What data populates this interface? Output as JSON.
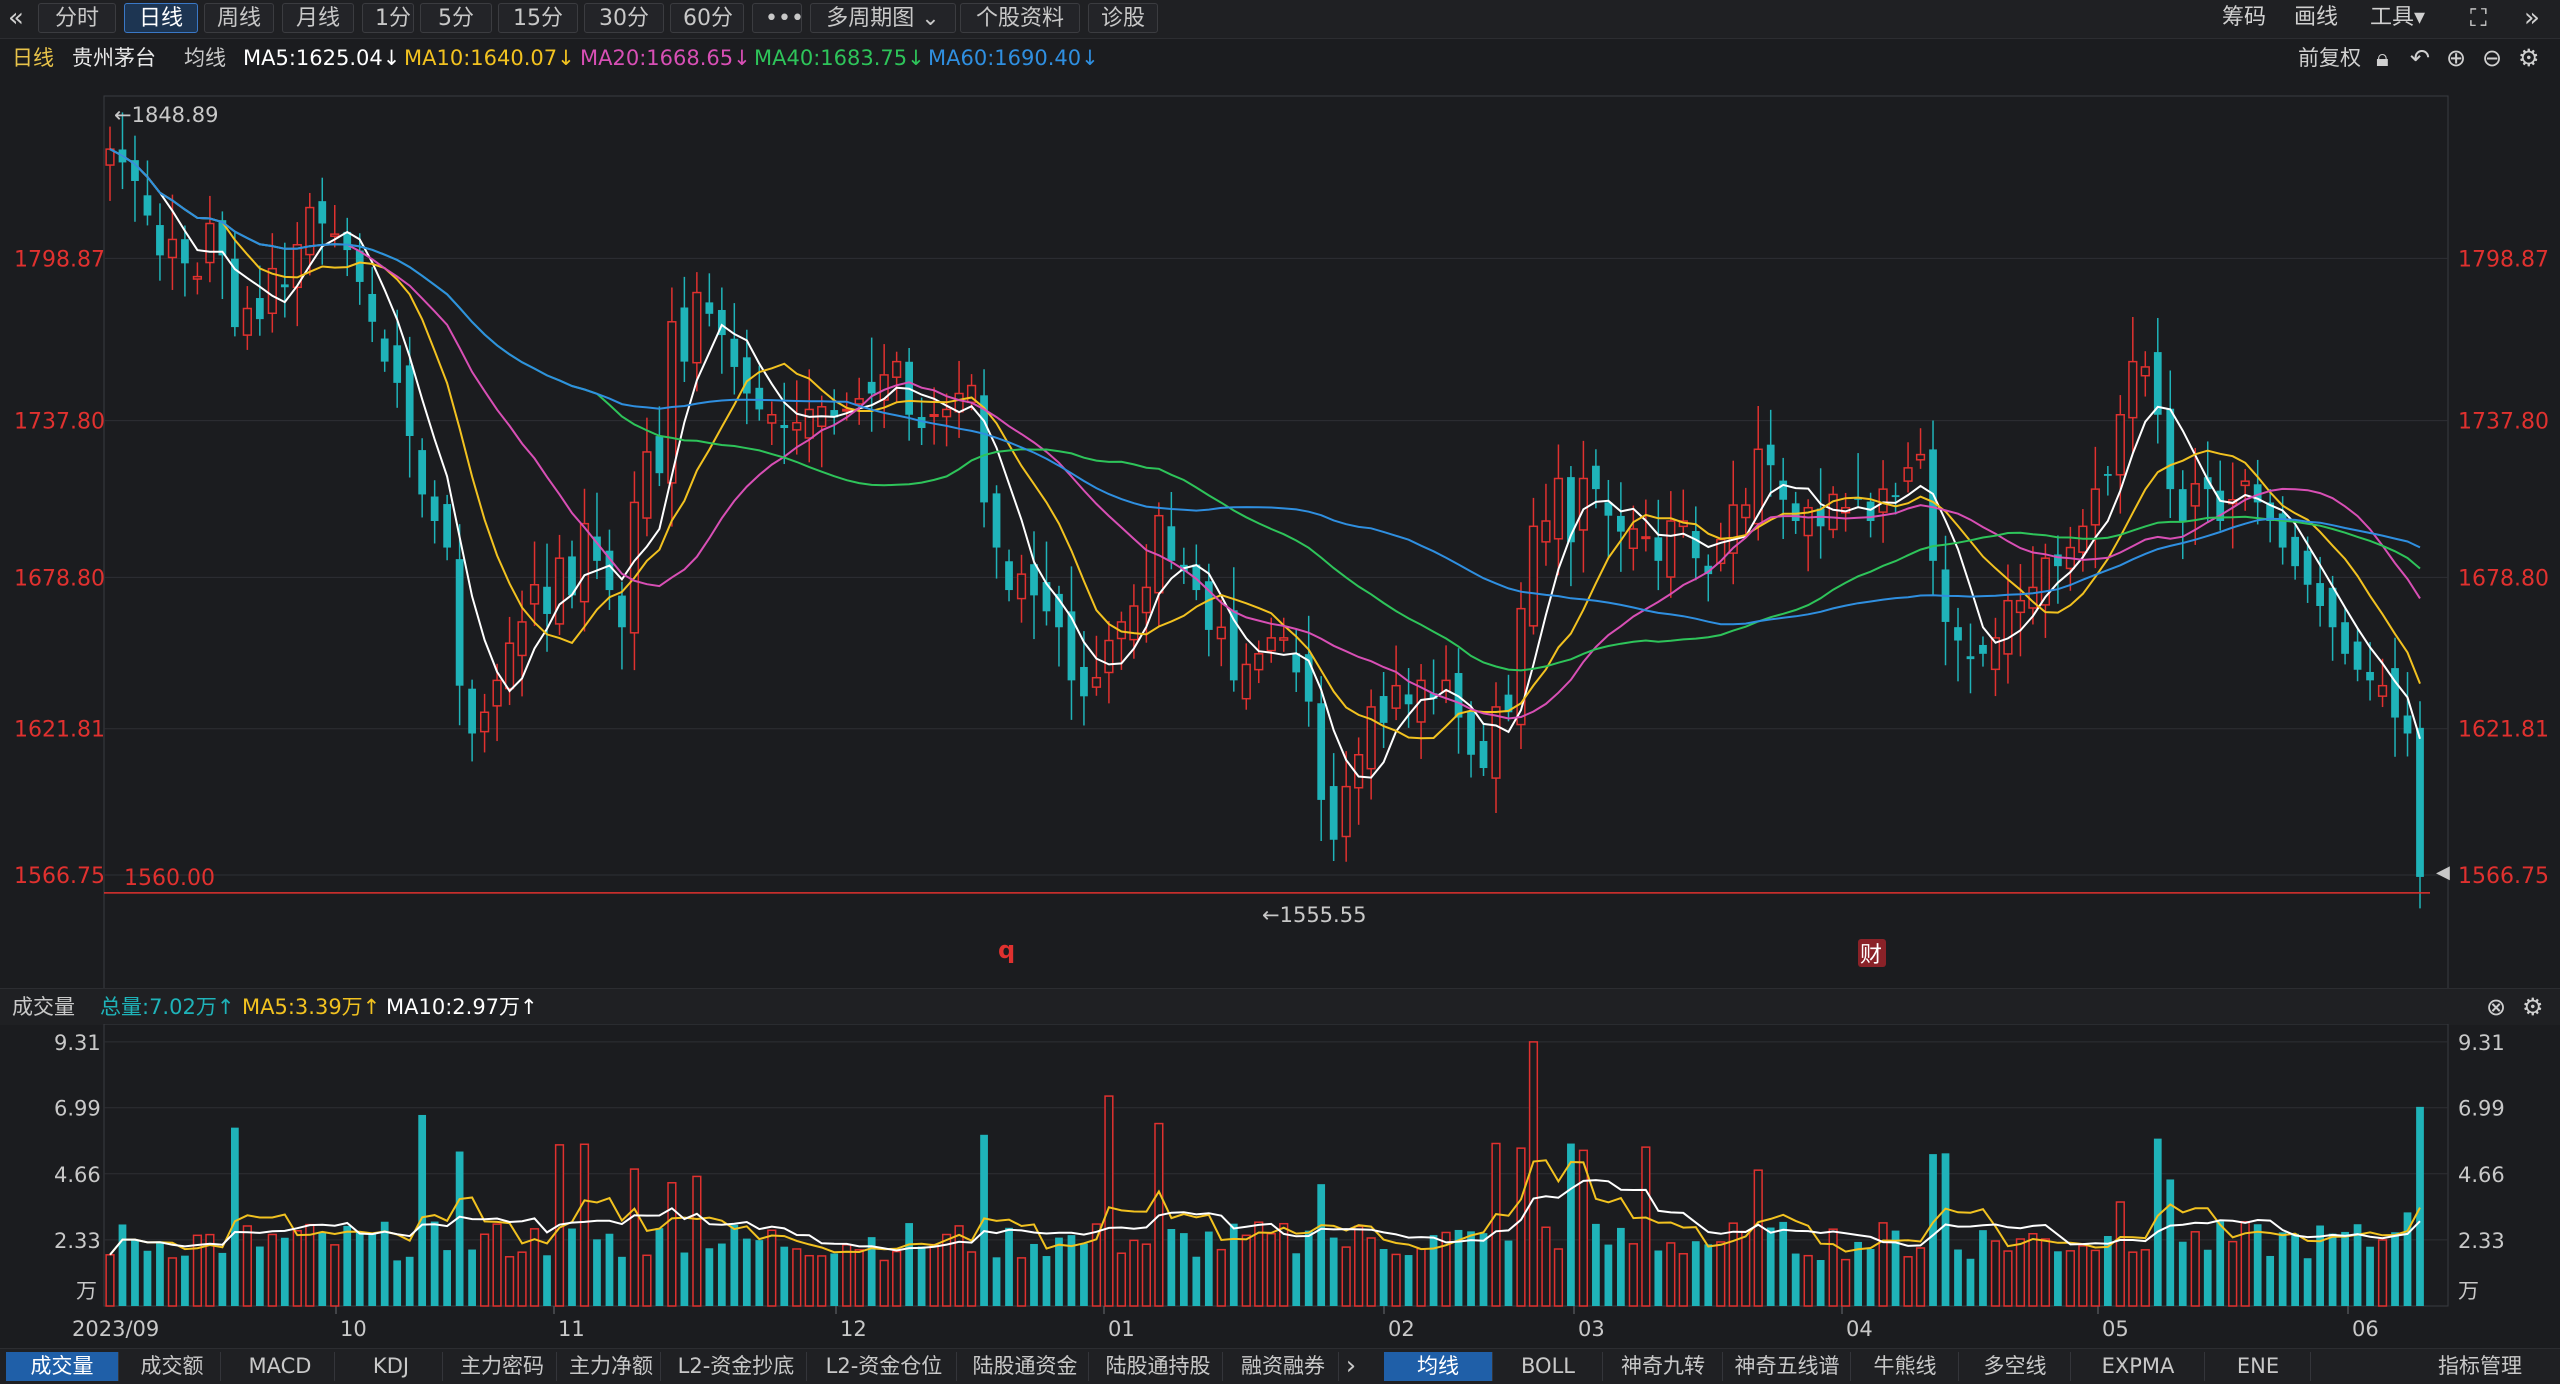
{
  "toolbar": {
    "collapse_icon": "chevrons-left-icon",
    "buttons": [
      "分时",
      "日线",
      "周线",
      "月线",
      "1分",
      "5分",
      "15分",
      "30分",
      "60分",
      "•••",
      "多周期图 ⌄",
      "个股资料",
      "诊股"
    ],
    "active": "日线",
    "right": [
      "筹码",
      "画线",
      "工具▾"
    ],
    "expand_icon": "fullscreen-icon",
    "collapse_right_icon": "chevrons-right-icon"
  },
  "header": {
    "period": "日线",
    "stock": "贵州茅台",
    "ma_title": "均线",
    "ma5": "MA5:1625.04↓",
    "ma10": "MA10:1640.07↓",
    "ma20": "MA20:1668.65↓",
    "ma40": "MA40:1683.75↓",
    "ma60": "MA60:1690.40↓",
    "adjust": "前复权",
    "icons": [
      "lock-icon",
      "undo-icon",
      "zoom-in-icon",
      "zoom-out-icon",
      "gear-icon"
    ]
  },
  "price_axis": {
    "ticks": [
      "1798.87",
      "1737.80",
      "1678.80",
      "1621.81",
      "1566.75"
    ],
    "max_label": "←1848.89",
    "min_label": "←1555.55",
    "line_label": "1560.00",
    "marker_q": "q",
    "marker_cai": "财"
  },
  "volume_header": {
    "title": "成交量",
    "total": "总量:7.02万↑",
    "ma5": "MA5:3.39万↑",
    "ma10": "MA10:2.97万↑",
    "icons": [
      "close-circle-icon",
      "gear-icon"
    ]
  },
  "volume_axis": {
    "ticks": [
      "9.31",
      "6.99",
      "4.66",
      "2.33"
    ],
    "unit": "万"
  },
  "date_axis": [
    "2023/09",
    "10",
    "11",
    "12",
    "01",
    "02",
    "03",
    "04",
    "05",
    "06"
  ],
  "bottom_tabs": {
    "left": [
      "成交量",
      "成交额",
      "MACD",
      "KDJ",
      "主力密码",
      "主力净额",
      "L2-资金抄底",
      "L2-资金仓位",
      "陆股通资金",
      "陆股通持股",
      "融资融券"
    ],
    "arrow": "›",
    "right": [
      "均线",
      "BOLL",
      "神奇九转",
      "神奇五线谱",
      "牛熊线",
      "多空线",
      "EXPMA",
      "ENE"
    ],
    "manage": "指标管理",
    "active_left": "成交量",
    "active_right": "均线"
  },
  "colors": {
    "up": "#e0312f",
    "down": "#1fb3b9",
    "ma5": "#ffffff",
    "ma10": "#f2c220",
    "ma20": "#d84fb5",
    "ma40": "#2ec45a",
    "ma60": "#2f8fe0"
  },
  "chart_data": {
    "type": "candlestick",
    "title": "贵州茅台 日线",
    "ylim": [
      1540,
      1860
    ],
    "closes": [
      1840,
      1835,
      1828,
      1815,
      1800,
      1806,
      1797,
      1792,
      1812,
      1800,
      1773,
      1780,
      1776,
      1795,
      1788,
      1804,
      1818,
      1812,
      1808,
      1802,
      1790,
      1775,
      1760,
      1752,
      1732,
      1710,
      1700,
      1690,
      1638,
      1620,
      1628,
      1640,
      1654,
      1662,
      1676,
      1665,
      1686,
      1672,
      1699,
      1685,
      1674,
      1660,
      1707,
      1726,
      1718,
      1775,
      1760,
      1786,
      1778,
      1770,
      1758,
      1748,
      1742,
      1740,
      1735,
      1737,
      1742,
      1743,
      1739,
      1742,
      1746,
      1748,
      1755,
      1760,
      1740,
      1735,
      1740,
      1742,
      1748,
      1751,
      1707,
      1690,
      1674,
      1680,
      1672,
      1666,
      1660,
      1640,
      1634,
      1641,
      1655,
      1662,
      1668,
      1675,
      1702,
      1685,
      1681,
      1674,
      1659,
      1660,
      1640,
      1646,
      1650,
      1656,
      1656,
      1643,
      1632,
      1595,
      1580,
      1600,
      1612,
      1630,
      1624,
      1638,
      1631,
      1640,
      1633,
      1640,
      1626,
      1612,
      1607,
      1630,
      1628,
      1667,
      1698,
      1700,
      1716,
      1692,
      1716,
      1712,
      1702,
      1696,
      1697,
      1694,
      1685,
      1700,
      1700,
      1686,
      1680,
      1693,
      1706,
      1706,
      1727,
      1721,
      1708,
      1700,
      1705,
      1698,
      1710,
      1705,
      1708,
      1700,
      1712,
      1709,
      1720,
      1725,
      1685,
      1662,
      1655,
      1648,
      1650,
      1656,
      1670,
      1670,
      1675,
      1686,
      1683,
      1690,
      1698,
      1712,
      1717,
      1740,
      1760,
      1758,
      1740,
      1712,
      1700,
      1714,
      1712,
      1700,
      1708,
      1715,
      1707,
      1700,
      1690,
      1683,
      1676,
      1668,
      1660,
      1650,
      1644,
      1640,
      1638,
      1626,
      1620,
      1566
    ]
  }
}
